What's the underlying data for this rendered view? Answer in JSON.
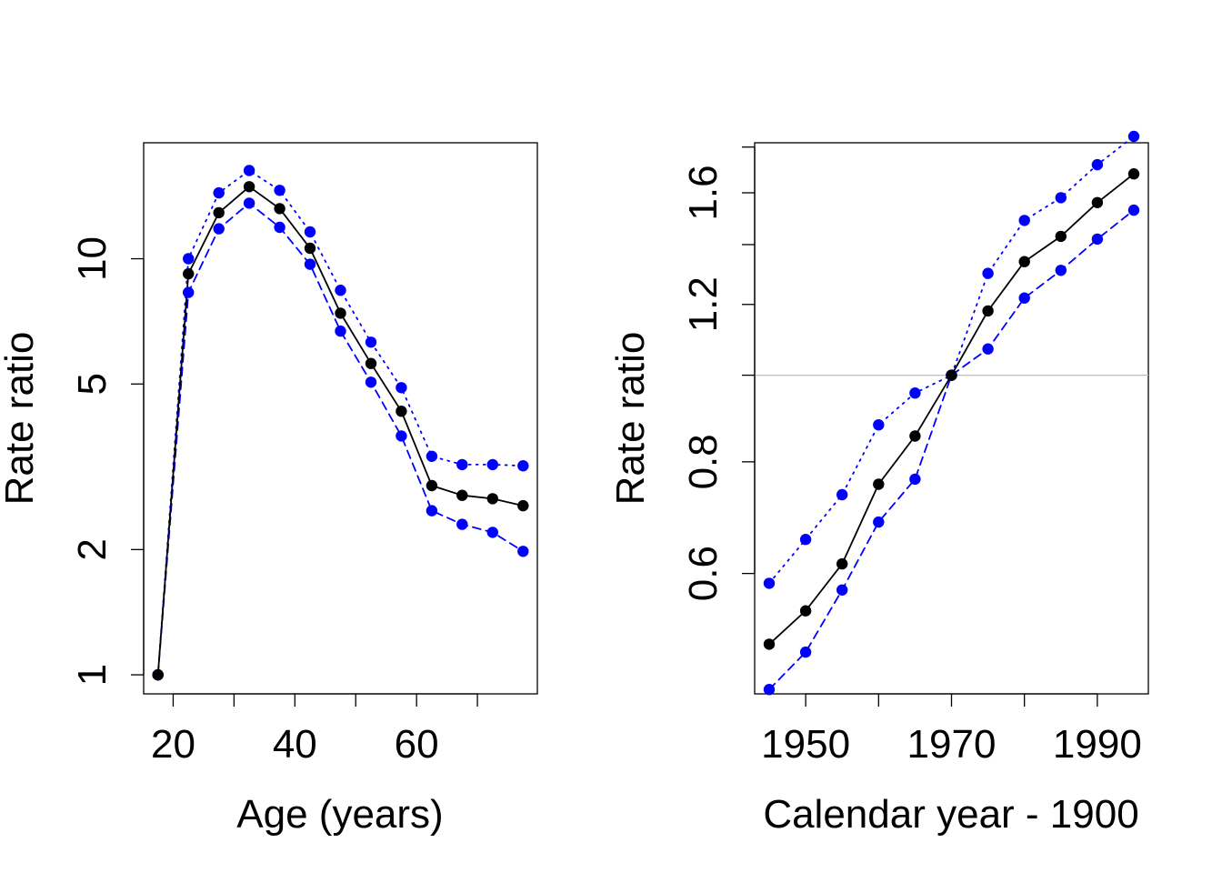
{
  "chart_data": [
    {
      "type": "line",
      "xlabel": "Age (years)",
      "ylabel": "Rate ratio",
      "xlim": [
        15.15,
        79.85
      ],
      "ylim": [
        0.9,
        19.0
      ],
      "log_y": true,
      "grid": false,
      "x_ticks": [
        20,
        30,
        40,
        50,
        60,
        70
      ],
      "x_tick_labels": [
        "20",
        "",
        "40",
        "",
        "60",
        ""
      ],
      "y_ticks": [
        1,
        2,
        5,
        10
      ],
      "y_tick_labels": [
        "1",
        "2",
        "5",
        "10"
      ],
      "x": [
        17.5,
        22.5,
        27.5,
        32.5,
        37.5,
        42.5,
        47.5,
        52.5,
        57.5,
        62.5,
        67.5,
        72.5,
        77.5
      ],
      "series": [
        {
          "values": [
            1.0,
            9.2,
            12.9,
            14.9,
            13.2,
            10.6,
            7.4,
            5.6,
            4.3,
            2.85,
            2.7,
            2.65,
            2.55
          ],
          "color": "#000000",
          "line_style": "solid"
        },
        {
          "values": [
            1.0,
            10.0,
            14.4,
            16.3,
            14.6,
            11.6,
            8.4,
            6.3,
            4.9,
            3.35,
            3.2,
            3.2,
            3.18
          ],
          "color": "#0000FF",
          "line_style": "dotted"
        },
        {
          "values": [
            1.0,
            8.3,
            11.8,
            13.6,
            11.9,
            9.7,
            6.7,
            5.05,
            3.75,
            2.48,
            2.3,
            2.2,
            1.98
          ],
          "color": "#0000FF",
          "line_style": "dashed"
        }
      ]
    },
    {
      "type": "line",
      "xlabel": "Calendar year - 1900",
      "ylabel": "Rate ratio",
      "xlim": [
        1943.0,
        1997.0
      ],
      "ylim": [
        0.44,
        1.82
      ],
      "log_y": true,
      "grid": false,
      "reference_line": {
        "y": 1.0,
        "color": "#BEBEBE"
      },
      "x_ticks": [
        1950,
        1960,
        1970,
        1980,
        1990
      ],
      "x_tick_labels": [
        "1950",
        "",
        "1970",
        "",
        "1990"
      ],
      "y_ticks": [
        0.6,
        0.8,
        1.0,
        1.2,
        1.4,
        1.6,
        1.8
      ],
      "y_tick_labels": [
        "0.6",
        "0.8",
        "",
        "1.2",
        "",
        "1.6",
        ""
      ],
      "x": [
        1945,
        1950,
        1955,
        1960,
        1965,
        1970,
        1975,
        1980,
        1985,
        1990,
        1995
      ],
      "series": [
        {
          "values": [
            0.5,
            0.545,
            0.615,
            0.755,
            0.855,
            1.0,
            1.18,
            1.34,
            1.43,
            1.56,
            1.68
          ],
          "color": "#000000",
          "line_style": "solid"
        },
        {
          "values": [
            0.585,
            0.655,
            0.735,
            0.88,
            0.955,
            1.0,
            1.3,
            1.49,
            1.58,
            1.72,
            1.85
          ],
          "color": "#0000FF",
          "line_style": "dotted"
        },
        {
          "values": [
            0.445,
            0.49,
            0.575,
            0.685,
            0.765,
            1.0,
            1.07,
            1.22,
            1.31,
            1.42,
            1.53
          ],
          "color": "#0000FF",
          "line_style": "dashed"
        }
      ]
    }
  ]
}
